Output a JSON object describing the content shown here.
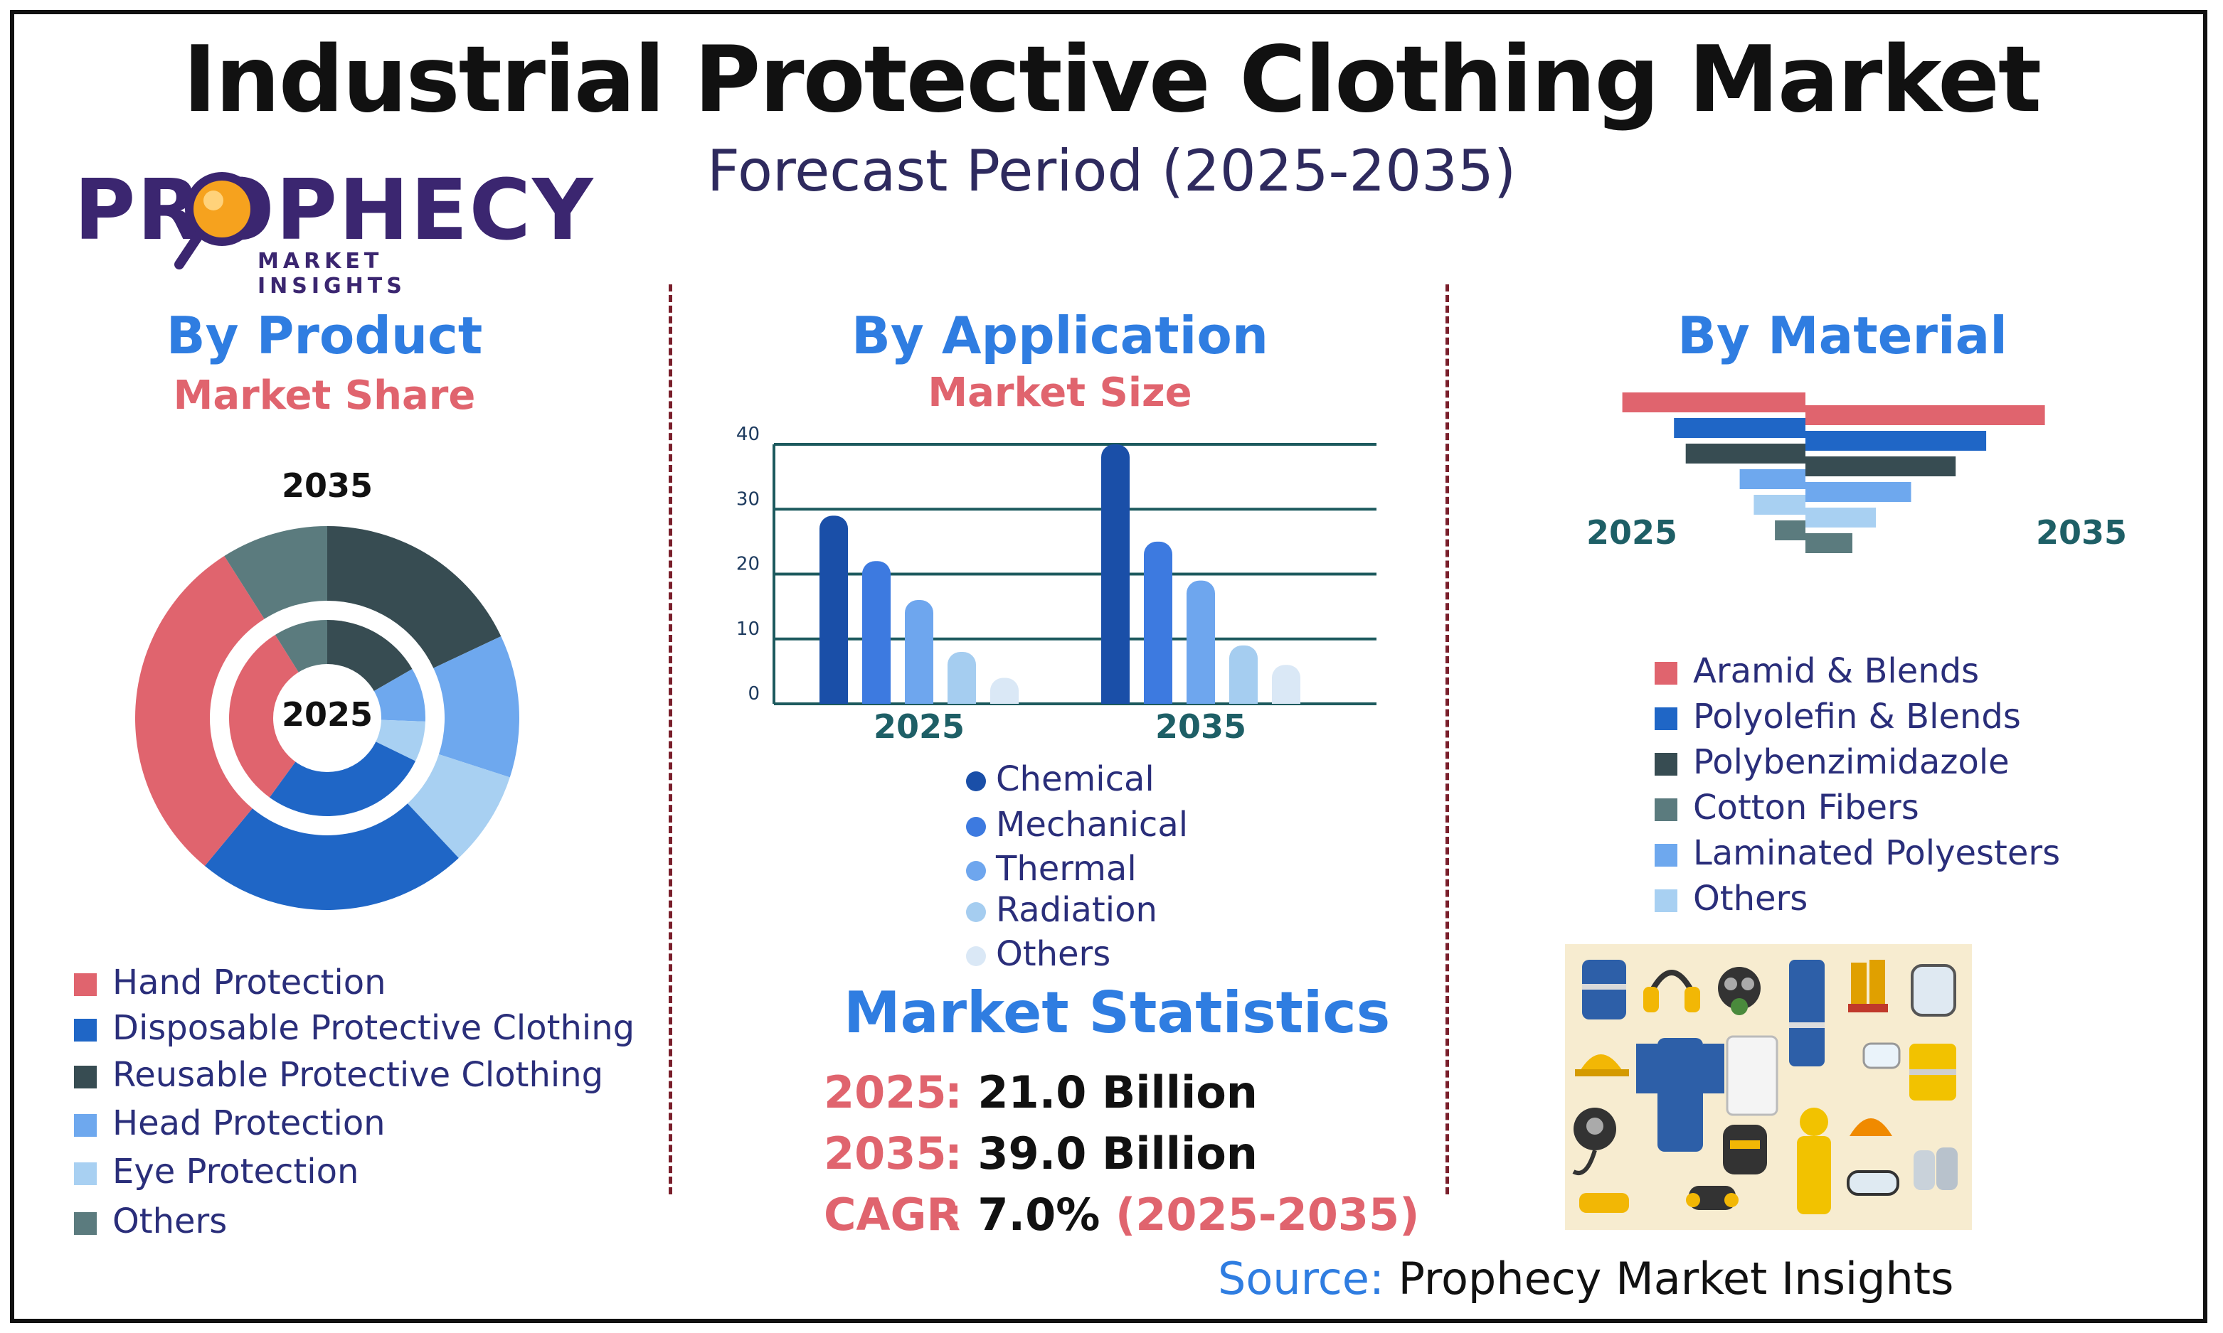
{
  "title": "Industrial Protective Clothing Market",
  "subtitle": "Forecast Period (2025-2035)",
  "logo": {
    "name": "PROPHECY",
    "tagline": "MARKET INSIGHTS"
  },
  "colors": {
    "hand": "#e0646e",
    "disposable": "#1f66c6",
    "reusable": "#374c52",
    "head": "#6ea8ee",
    "eye": "#a8d0f2",
    "others": "#5b7b7e",
    "chemical": "#1a4fa8",
    "mechanical": "#3d7ae0",
    "thermal": "#6ea6ee",
    "radiation": "#a5cdf0",
    "app_others": "#dae8f6"
  },
  "product": {
    "title": "By Product",
    "subtitle": "Market Share",
    "outer_label": "2035",
    "inner_label": "2025",
    "legend": [
      "Hand Protection",
      "Disposable Protective Clothing",
      "Reusable Protective Clothing",
      "Head Protection",
      "Eye Protection",
      "Others"
    ]
  },
  "application": {
    "title": "By Application",
    "subtitle": "Market Size",
    "legend": [
      "Chemical",
      "Mechanical",
      "Thermal",
      "Radiation",
      "Others"
    ]
  },
  "material": {
    "title": "By Material",
    "left_year": "2025",
    "right_year": "2035",
    "legend": [
      "Aramid & Blends",
      "Polyolefin & Blends",
      "Polybenzimidazole",
      "Cotton Fibers",
      "Laminated Polyesters",
      "Others"
    ]
  },
  "stats": {
    "title": "Market Statistics",
    "rows": [
      {
        "key": "2025",
        "colon": ":",
        "value": "21.0 Billion",
        "extra": ""
      },
      {
        "key": "2035",
        "colon": ":",
        "value": "39.0 Billion",
        "extra": ""
      },
      {
        "key": "CAGR",
        "colon": ":",
        "value": "7.0%",
        "extra": "(2025-2035)"
      }
    ]
  },
  "source": {
    "label": "Source:",
    "value": "Prophecy Market Insights"
  },
  "chart_data": [
    {
      "type": "pie",
      "title": "By Product",
      "subtitle": "Market Share",
      "categories": [
        "Hand Protection",
        "Disposable Protective Clothing",
        "Reusable Protective Clothing",
        "Head Protection",
        "Eye Protection",
        "Others"
      ],
      "series": [
        {
          "name": "2035",
          "values": [
            30,
            23,
            18,
            12,
            8,
            9
          ]
        },
        {
          "name": "2025",
          "values": [
            28,
            25,
            15,
            8,
            6,
            8
          ]
        }
      ]
    },
    {
      "type": "bar",
      "title": "By Application",
      "subtitle": "Market Size",
      "categories": [
        "2025",
        "2035"
      ],
      "series": [
        {
          "name": "Chemical",
          "values": [
            29,
            40
          ]
        },
        {
          "name": "Mechanical",
          "values": [
            22,
            25
          ]
        },
        {
          "name": "Thermal",
          "values": [
            16,
            19
          ]
        },
        {
          "name": "Radiation",
          "values": [
            8,
            9
          ]
        },
        {
          "name": "Others",
          "values": [
            4,
            6
          ]
        }
      ],
      "yticks": [
        "0",
        "10",
        "20",
        "30",
        "40"
      ],
      "ylim": [
        0,
        40
      ],
      "grid": true
    },
    {
      "type": "bar",
      "title": "By Material",
      "categories": [
        "Aramid & Blends",
        "Polyolefin & Blends",
        "Polybenzimidazole",
        "Cotton Fibers",
        "Laminated Polyesters",
        "Others"
      ],
      "series": [
        {
          "name": "2025",
          "values": [
            7.8,
            5.6,
            5.1,
            2.8,
            2.2,
            1.3
          ]
        },
        {
          "name": "2035",
          "values": [
            10.2,
            7.7,
            6.4,
            4.5,
            3.0,
            2.0
          ]
        }
      ]
    }
  ]
}
